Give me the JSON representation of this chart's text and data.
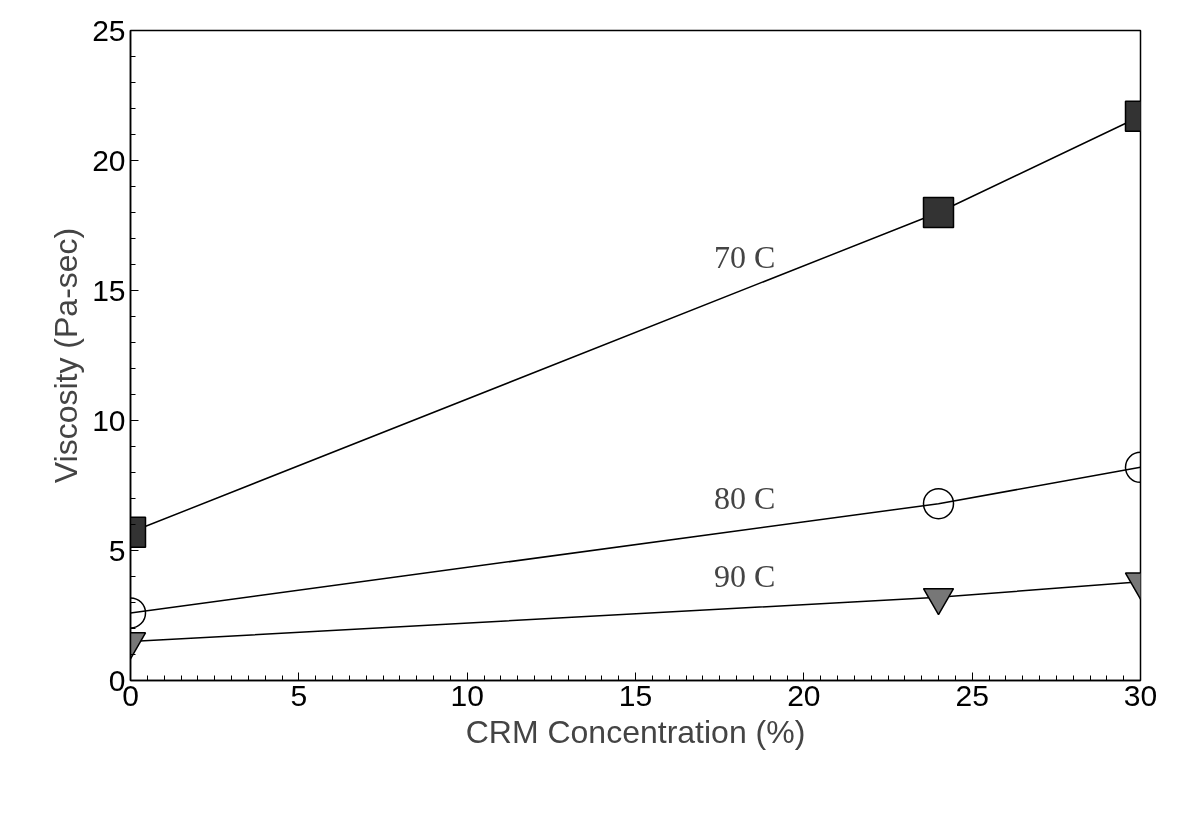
{
  "chart_data": {
    "type": "line",
    "xlabel": "CRM Concentration (%)",
    "ylabel": "Viscosity (Pa-sec)",
    "xlim": [
      0,
      30
    ],
    "ylim": [
      0,
      25
    ],
    "xticks": [
      0,
      5,
      10,
      15,
      20,
      25,
      30
    ],
    "yticks": [
      0,
      5,
      10,
      15,
      20,
      25
    ],
    "grid": false,
    "series": [
      {
        "name": "70 C",
        "x": [
          0,
          24,
          30
        ],
        "values": [
          5.7,
          18.0,
          21.7
        ],
        "color": "#333333",
        "marker": "square"
      },
      {
        "name": "80 C",
        "x": [
          0,
          24,
          30
        ],
        "values": [
          2.6,
          6.8,
          8.2
        ],
        "color": "#000000",
        "marker": "circle"
      },
      {
        "name": "90 C",
        "x": [
          0,
          24,
          30
        ],
        "values": [
          1.5,
          3.2,
          3.8
        ],
        "color": "#777777",
        "marker": "triangle"
      }
    ]
  }
}
